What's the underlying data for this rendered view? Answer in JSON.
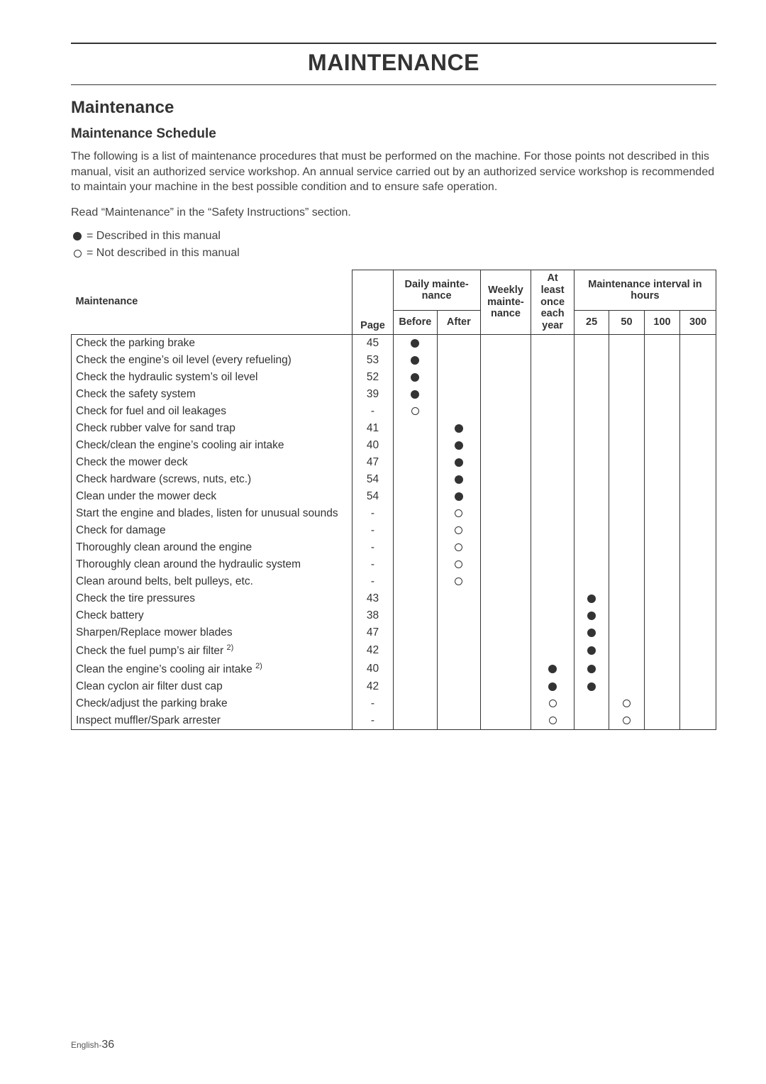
{
  "chapter_title": "MAINTENANCE",
  "section_title": "Maintenance",
  "sub_title": "Maintenance Schedule",
  "intro_text": "The following is a list of maintenance procedures that must be performed on the machine. For those points not described in this manual, visit an authorized service workshop. An annual service carried out by an authorized service workshop is recommended to maintain your machine in the best possible condition and to ensure safe operation.",
  "read_text": "Read “Maintenance” in the “Safety Instructions” section.",
  "legend": {
    "filled": "= Described in this manual",
    "empty": "= Not described in this manual"
  },
  "table": {
    "headers": {
      "maintenance": "Maintenance",
      "page": "Page",
      "daily": "Daily mainte-nance",
      "daily_before": "Before",
      "daily_after": "After",
      "weekly": "Weekly mainte-nance",
      "yearly": "At least once each year",
      "interval": "Maintenance interval in hours",
      "h25": "25",
      "h50": "50",
      "h100": "100",
      "h300": "300"
    },
    "rows": [
      {
        "label": "Check the parking brake",
        "page": "45",
        "before": "f"
      },
      {
        "label": "Check the engine’s oil level (every refueling)",
        "page": "53",
        "before": "f"
      },
      {
        "label": "Check the hydraulic system’s oil level",
        "page": "52",
        "before": "f"
      },
      {
        "label": "Check the safety system",
        "page": "39",
        "before": "f"
      },
      {
        "label": "Check for fuel and oil leakages",
        "page": "-",
        "before": "e"
      },
      {
        "label": "Check rubber valve for sand trap",
        "page": "41",
        "after": "f"
      },
      {
        "label": "Check/clean the engine’s cooling air intake",
        "page": "40",
        "after": "f"
      },
      {
        "label": "Check the mower deck",
        "page": "47",
        "after": "f"
      },
      {
        "label": "Check hardware (screws, nuts, etc.)",
        "page": "54",
        "after": "f"
      },
      {
        "label": "Clean under the mower deck",
        "page": "54",
        "after": "f"
      },
      {
        "label": "Start the engine and blades, listen for unusual sounds",
        "page": "-",
        "after": "e"
      },
      {
        "label": "Check for damage",
        "page": "-",
        "after": "e"
      },
      {
        "label": "Thoroughly clean around the engine",
        "page": "-",
        "after": "e"
      },
      {
        "label": "Thoroughly clean around the hydraulic system",
        "page": "-",
        "after": "e"
      },
      {
        "label": "Clean around belts, belt pulleys, etc.",
        "page": "-",
        "after": "e"
      },
      {
        "label": "Check the tire pressures",
        "page": "43",
        "h25": "f"
      },
      {
        "label": "Check battery",
        "page": "38",
        "h25": "f"
      },
      {
        "label": "Sharpen/Replace mower blades",
        "page": "47",
        "h25": "f"
      },
      {
        "label": "Check the fuel pump’s air filter",
        "sup": "2)",
        "page": "42",
        "h25": "f"
      },
      {
        "label": "Clean the engine’s cooling air intake",
        "sup": "2)",
        "page": "40",
        "year": "f",
        "h25": "f"
      },
      {
        "label": "Clean cyclon air filter dust cap",
        "page": "42",
        "year": "f",
        "h25": "f"
      },
      {
        "label": "Check/adjust the parking brake",
        "page": "-",
        "year": "e",
        "h50": "e"
      },
      {
        "label": "Inspect muffler/Spark arrester",
        "page": "-",
        "year": "e",
        "h50": "e"
      }
    ]
  },
  "footer_lang": "English-",
  "footer_page": "36"
}
